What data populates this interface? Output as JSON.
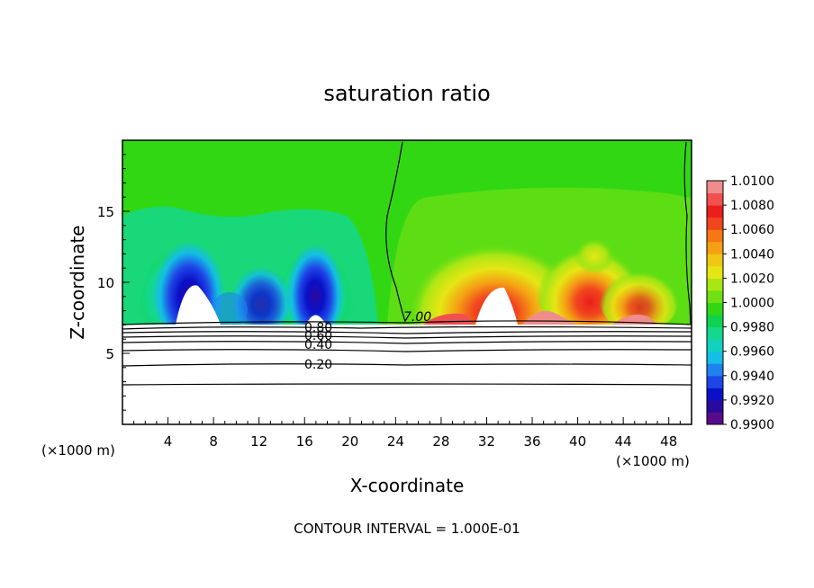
{
  "chart_data": {
    "type": "heatmap",
    "title": "saturation ratio",
    "xlabel": "X-coordinate",
    "ylabel": "Z-coordinate",
    "x_unit_left": "(×1000 m)",
    "x_unit_right": "(×1000 m)",
    "xlim": [
      0,
      50
    ],
    "ylim": [
      0,
      20
    ],
    "x_ticks": [
      4,
      8,
      12,
      16,
      20,
      24,
      28,
      32,
      36,
      40,
      44,
      48
    ],
    "y_ticks": [
      5,
      10,
      15
    ],
    "colorbar": {
      "levels": [
        "1.0100",
        "1.0080",
        "1.0060",
        "1.0040",
        "1.0020",
        "1.0000",
        "0.9980",
        "0.9960",
        "0.9940",
        "0.9920",
        "0.9900"
      ],
      "range": [
        0.99,
        1.01
      ],
      "colors": [
        "#5a0a8a",
        "#2a0a9e",
        "#0a10c8",
        "#1e46e6",
        "#1e82f0",
        "#14bee6",
        "#10d2be",
        "#14d88c",
        "#10d250",
        "#32d714",
        "#6ee014",
        "#aae614",
        "#e6e614",
        "#f0c814",
        "#f5a014",
        "#f57814",
        "#f0461e",
        "#eb1e1e",
        "#f05050",
        "#f08c8c"
      ]
    },
    "contour_labels": [
      "7.00",
      "0.80",
      "0.60",
      "0.40",
      "0.20"
    ],
    "contour_interval_text": "CONTOUR INTERVAL = 1.000E-01"
  }
}
